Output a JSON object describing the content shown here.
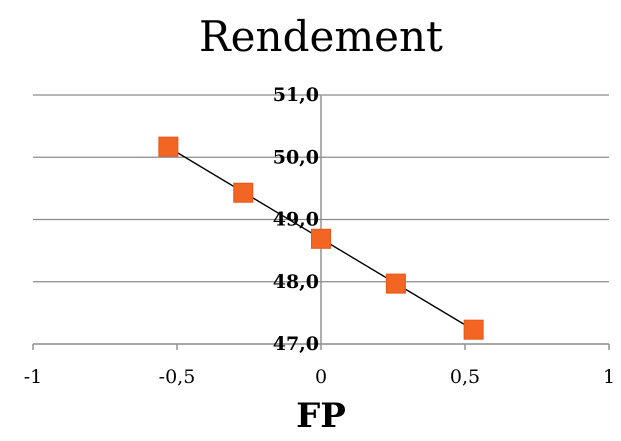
{
  "chart_data": {
    "type": "scatter",
    "title": "Rendement",
    "xlabel": "FP",
    "ylabel": "",
    "xlim": [
      -1,
      1
    ],
    "ylim": [
      47.0,
      51.0
    ],
    "x_ticks": [
      -1,
      -0.5,
      0,
      0.5,
      1
    ],
    "x_tick_labels": [
      "-1",
      "-0,5",
      "0",
      "0,5",
      "1"
    ],
    "y_ticks": [
      47.0,
      48.0,
      49.0,
      50.0,
      51.0
    ],
    "y_tick_labels": [
      "47,0",
      "48,0",
      "49,0",
      "50,0",
      "51,0"
    ],
    "grid": "horizontal",
    "legend": "none",
    "series": [
      {
        "points": [
          {
            "x": -0.53,
            "y": 50.17
          },
          {
            "x": -0.27,
            "y": 49.43
          },
          {
            "x": 0.0,
            "y": 48.69
          },
          {
            "x": 0.26,
            "y": 47.97
          },
          {
            "x": 0.53,
            "y": 47.23
          }
        ],
        "marker": "square",
        "color": "#f26522"
      }
    ],
    "trendline": {
      "type": "linear",
      "x_start": -0.53,
      "x_end": 0.53,
      "color": "#000000"
    },
    "colors": {
      "gridline": "#8c8c8c",
      "axis": "#8c8c8c",
      "marker_fill": "#f26522",
      "marker_stroke": "#e8561a"
    }
  }
}
